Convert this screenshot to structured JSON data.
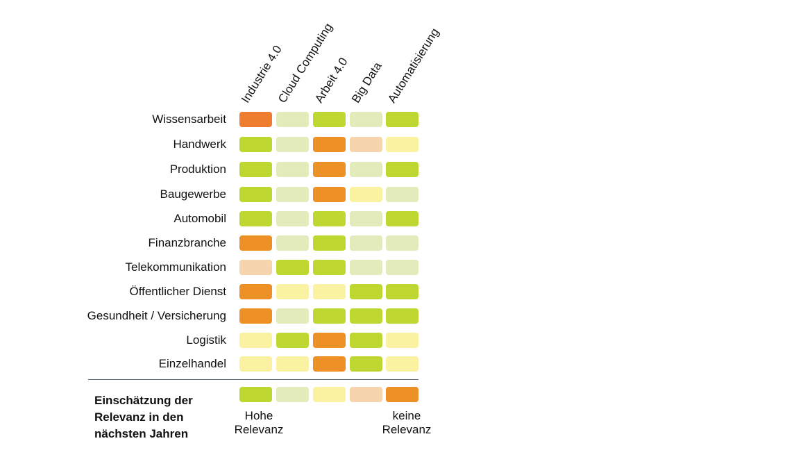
{
  "chart_data": {
    "type": "heatmap",
    "columns": [
      "Industrie 4.0",
      "Cloud Computing",
      "Arbeit 4.0",
      "Big Data",
      "Automatisierung"
    ],
    "rows": [
      "Wissensarbeit",
      "Handwerk",
      "Produktion",
      "Baugewerbe",
      "Automobil",
      "Finanzbranche",
      "Telekommunikation",
      "Öffentlicher Dienst",
      "Gesundheit / Versicherung",
      "Logistik",
      "Einzelhandel"
    ],
    "scale_note": "1 = Hohe Relevanz … 5 = keine Relevanz",
    "values": [
      [
        5,
        2,
        1,
        2,
        1
      ],
      [
        1,
        2,
        5,
        4,
        3
      ],
      [
        1,
        2,
        5,
        2,
        1
      ],
      [
        1,
        2,
        5,
        3,
        2
      ],
      [
        1,
        2,
        1,
        2,
        1
      ],
      [
        5,
        2,
        1,
        2,
        2
      ],
      [
        4,
        1,
        1,
        2,
        2
      ],
      [
        5,
        3,
        3,
        1,
        1
      ],
      [
        5,
        2,
        1,
        1,
        1
      ],
      [
        3,
        1,
        5,
        1,
        3
      ],
      [
        3,
        3,
        5,
        1,
        3
      ]
    ],
    "level_colors": {
      "1": "#bed731",
      "2": "#e3ebbd",
      "3": "#faf1a1",
      "4": "#f6d4ae",
      "5": "#ed9126"
    },
    "legend": {
      "title": "Einschätzung der Relevanz in den nächsten Jahren",
      "levels": [
        1,
        2,
        3,
        4,
        5
      ],
      "low_label": "Hohe Relevanz",
      "high_label": "keine Relevanz"
    }
  }
}
